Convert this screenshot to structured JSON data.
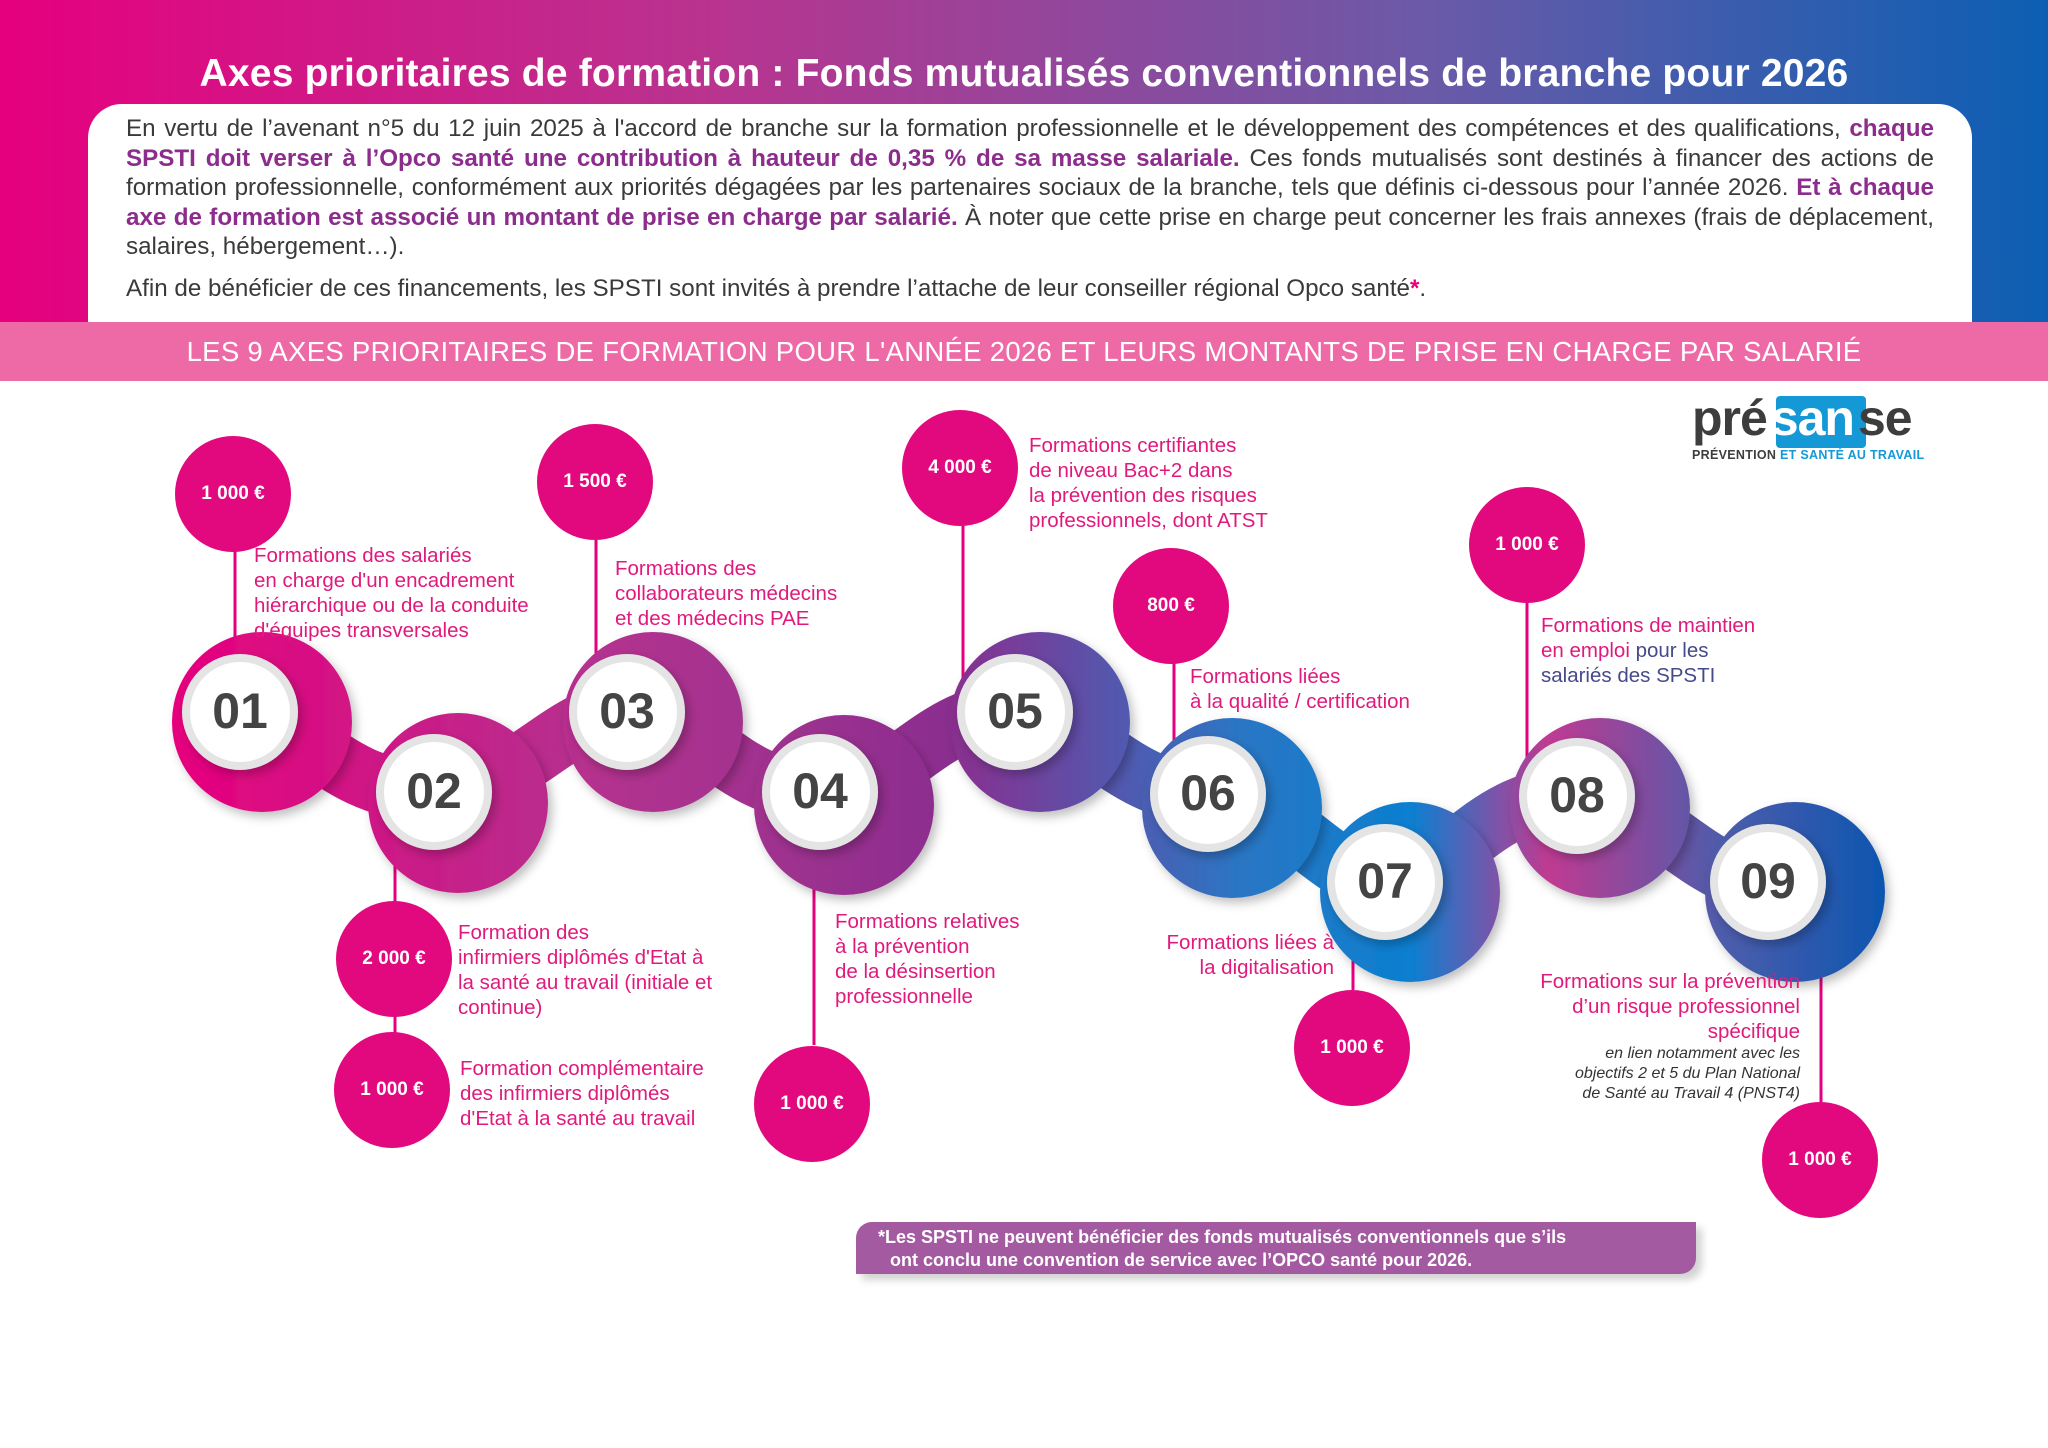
{
  "header": {
    "title": "Axes prioritaires de formation : Fonds mutualisés conventionnels de branche pour 2026",
    "intro_p1_a": "En vertu de l’avenant n°5 du 12 juin 2025 à l'accord de branche sur la formation professionnelle et le développement des compétences et des qualifications, ",
    "intro_p1_b": "chaque SPSTI doit verser à l’Opco santé une contribution à hauteur de 0,35 % de sa masse salariale.",
    "intro_p1_c": " Ces fonds mutualisés sont destinés à financer des actions de formation professionnelle, conformément aux priorités dégagées par les partenaires sociaux de la branche, tels que définis ci-dessous pour l’année 2026. ",
    "intro_p1_d": "Et à chaque axe de formation est associé un montant de prise en charge par salarié.",
    "intro_p1_e": " À noter que cette prise en charge peut concerner les frais annexes (frais de déplacement, salaires, hébergement…).",
    "intro_p2": "Afin de bénéficier de ces financements, les SPSTI sont invités à prendre l’attache de leur conseiller régional Opco santé",
    "intro_p2_star": "*",
    "intro_p2_end": "."
  },
  "band": {
    "text": "LES 9 AXES PRIORITAIRES DE FORMATION POUR L'ANNÉE 2026 ET LEURS MONTANTS DE PRISE EN CHARGE PAR SALARIÉ"
  },
  "logo": {
    "pre": "pré",
    "mid": "san",
    "post": "se",
    "tag_a": "PRÉVENTION ",
    "tag_b": "ET SANTÉ AU TRAVAIL"
  },
  "colors": {
    "pink": "#e6007e",
    "purple": "#8c2c8c",
    "blue": "#0b5fb3",
    "band": "#ee6aa7"
  },
  "axes": [
    {
      "num": "01",
      "amount": "1 000 €",
      "label": [
        "Formations des salariés",
        "en charge d'un encadrement",
        "hiérarchique ou de la conduite",
        "d'équipes transversales"
      ]
    },
    {
      "num": "02",
      "amount": "2 000 €",
      "label": [
        "Formation des",
        "infirmiers diplômés d'Etat à",
        "la santé au travail (initiale et",
        "continue)"
      ],
      "amount2": "1 000 €",
      "label2": [
        "Formation complémentaire",
        "des infirmiers diplômés",
        "d'Etat à la santé au travail"
      ]
    },
    {
      "num": "03",
      "amount": "1 500 €",
      "label": [
        "Formations des",
        "collaborateurs médecins",
        "et des médecins PAE"
      ]
    },
    {
      "num": "04",
      "amount": "1 000 €",
      "label": [
        "Formations relatives",
        "à la prévention",
        "de la désinsertion",
        "professionnelle"
      ]
    },
    {
      "num": "05",
      "amount": "4 000 €",
      "label": [
        "Formations certifiantes",
        "de niveau Bac+2 dans",
        "la prévention des risques",
        "professionnels, dont ATST"
      ]
    },
    {
      "num": "06",
      "amount": "800 €",
      "label": [
        "Formations liées",
        "à la qualité / certification"
      ]
    },
    {
      "num": "07",
      "amount": "1 000 €",
      "label": [
        "Formations liées à",
        "la digitalisation"
      ]
    },
    {
      "num": "08",
      "amount": "1 000 €",
      "label_a": "Formations de maintien",
      "label_b": "en emploi",
      "label_c": " pour les",
      "label_d": "salariés des SPSTI"
    },
    {
      "num": "09",
      "amount": "1 000 €",
      "label": [
        "Formations sur la prévention",
        "d’un risque professionnel",
        "spécifique"
      ],
      "sublabel": [
        "en lien notamment avec les",
        "objectifs 2 et 5 du Plan National",
        "de Santé  au Travail 4 (PNST4)"
      ]
    }
  ],
  "note": {
    "star": "*",
    "line1": "Les SPSTI ne peuvent bénéficier des fonds mutualisés conventionnels que s’ils",
    "line2": "ont conclu une convention de service avec l’OPCO santé pour 2026."
  }
}
